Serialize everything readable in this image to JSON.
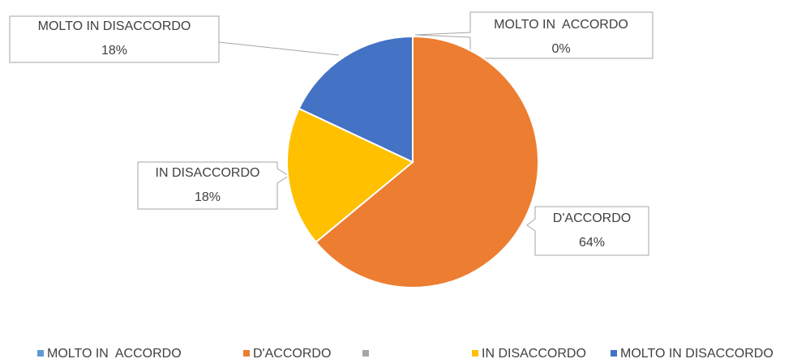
{
  "chart_data": {
    "type": "pie",
    "categories": [
      "MOLTO IN  ACCORDO",
      "D'ACCORDO",
      null,
      "IN DISACCORDO",
      "MOLTO IN DISACCORDO"
    ],
    "values": [
      0,
      64,
      0,
      18,
      18
    ],
    "value_labels": [
      "0%",
      "64%",
      null,
      "18%",
      "18%"
    ],
    "colors": [
      "#5b9bd5",
      "#ed7d31",
      "#a5a5a5",
      "#ffc000",
      "#4472c4"
    ],
    "legend": "bottom"
  }
}
